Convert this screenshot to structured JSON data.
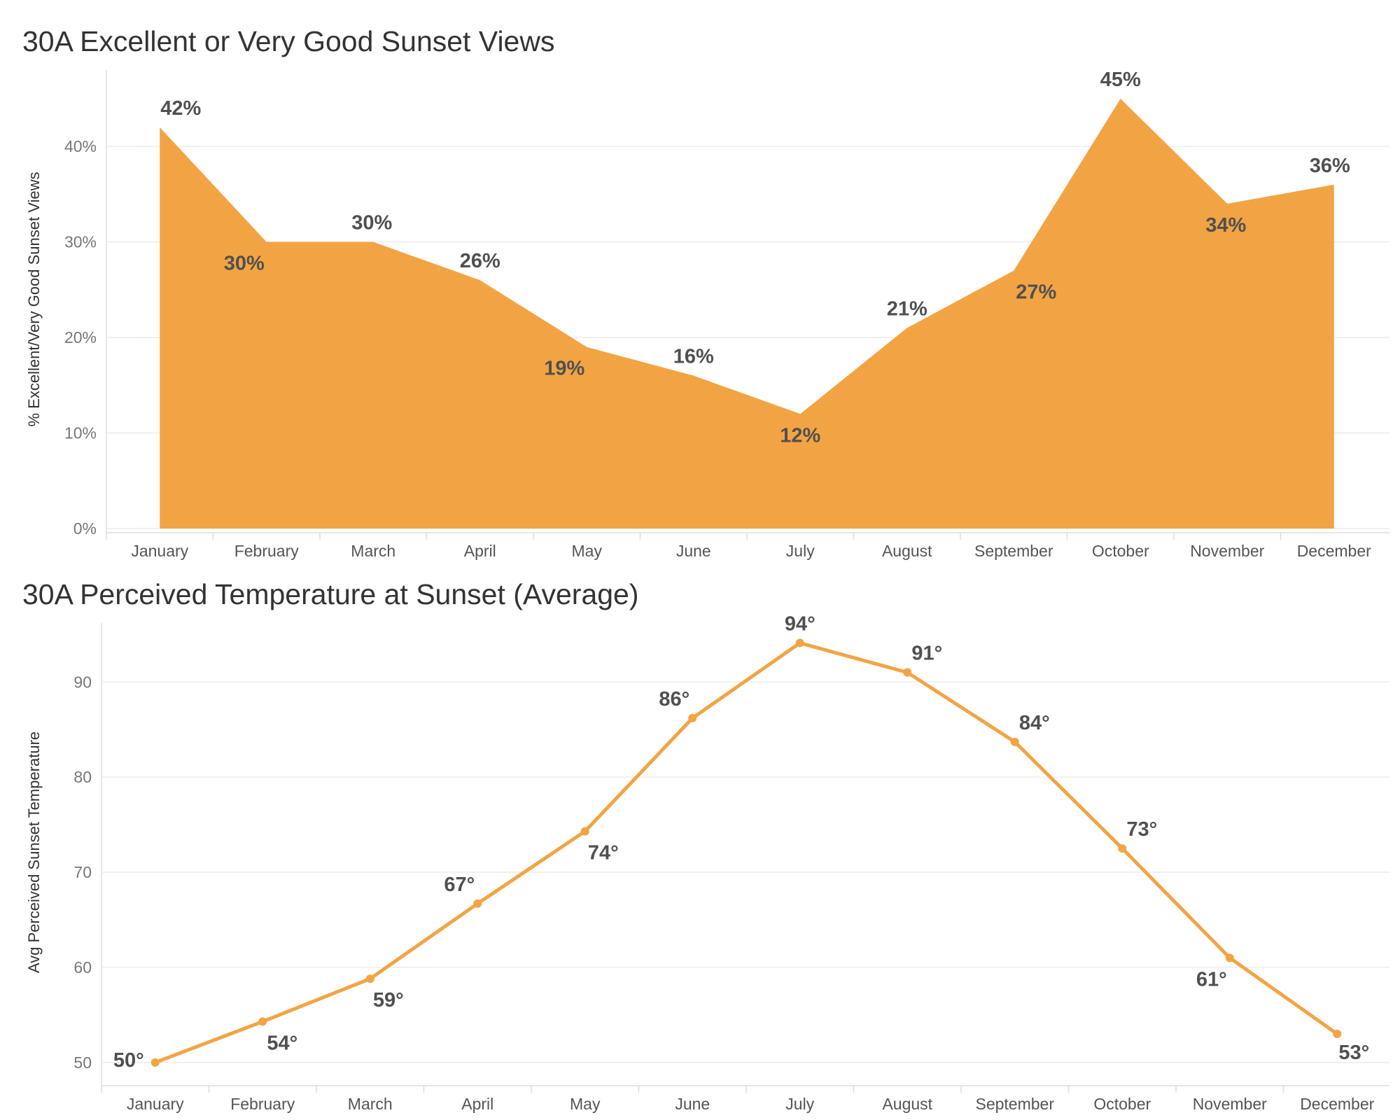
{
  "chart_data": [
    {
      "type": "area",
      "title": "30A Excellent or Very Good Sunset Views",
      "xlabel": "",
      "ylabel": "% Excellent/Very Good Sunset Views",
      "categories": [
        "January",
        "February",
        "March",
        "April",
        "May",
        "June",
        "July",
        "August",
        "September",
        "October",
        "November",
        "December"
      ],
      "values": [
        42,
        30,
        30,
        26,
        19,
        16,
        12,
        21,
        27,
        45,
        34,
        36
      ],
      "ylim": [
        0,
        48
      ],
      "yticks": [
        0,
        10,
        20,
        30,
        40
      ],
      "ytick_labels": [
        "0%",
        "10%",
        "20%",
        "30%",
        "40%"
      ],
      "data_labels": [
        "42%",
        "30%",
        "30%",
        "26%",
        "19%",
        "16%",
        "12%",
        "21%",
        "27%",
        "45%",
        "34%",
        "36%"
      ],
      "color": "#F2A445",
      "grid": true,
      "legend": "none"
    },
    {
      "type": "line",
      "title": "30A Perceived Temperature at Sunset (Average)",
      "xlabel": "",
      "ylabel": "Avg Perceived Sunset Temperature",
      "categories": [
        "January",
        "February",
        "March",
        "April",
        "May",
        "June",
        "July",
        "August",
        "September",
        "October",
        "November",
        "December"
      ],
      "values": [
        50,
        54.3,
        58.8,
        66.7,
        74.3,
        86.2,
        94.1,
        91,
        83.7,
        72.5,
        61,
        53
      ],
      "ylim": [
        48,
        96.2
      ],
      "yticks": [
        50,
        60,
        70,
        80,
        90
      ],
      "ytick_labels": [
        "50",
        "60",
        "70",
        "80",
        "90"
      ],
      "data_labels": [
        "50°",
        "54°",
        "59°",
        "67°",
        "74°",
        "86°",
        "94°",
        "91°",
        "84°",
        "73°",
        "61°",
        "53°"
      ],
      "color": "#F2A445",
      "grid": true,
      "legend": "none"
    }
  ]
}
